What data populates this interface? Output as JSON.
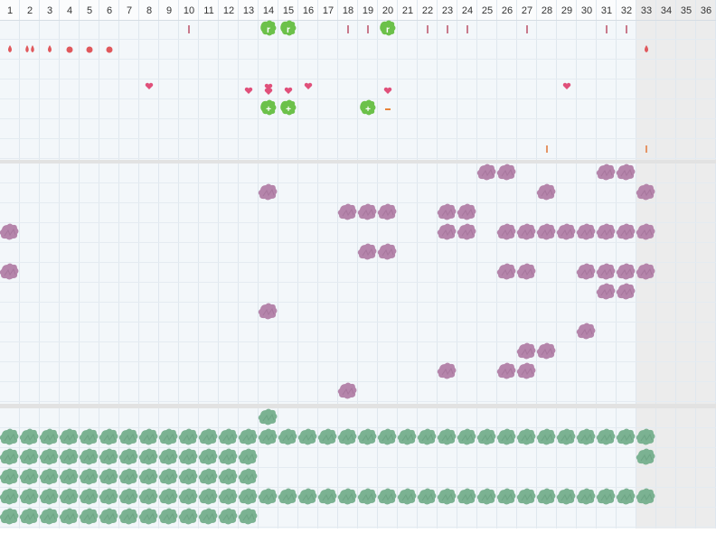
{
  "columns": [
    1,
    2,
    3,
    4,
    5,
    6,
    7,
    8,
    9,
    10,
    11,
    12,
    13,
    14,
    15,
    16,
    17,
    18,
    19,
    20,
    21,
    22,
    23,
    24,
    25,
    26,
    27,
    28,
    29,
    30,
    31,
    32,
    33,
    34,
    35,
    36
  ],
  "sections": [
    {
      "rows": [
        [
          {
            "icon": "tick",
            "days": [
              10,
              18,
              19,
              22,
              23,
              24,
              27,
              31,
              32
            ]
          },
          {
            "icon": "badge",
            "glyph": "r",
            "days": [
              14,
              15,
              20
            ]
          }
        ],
        [
          {
            "icon": "drop",
            "days": [
              1,
              3,
              33
            ]
          },
          {
            "icon": "drop-pair",
            "days": [
              2
            ]
          },
          {
            "icon": "dot",
            "days": [
              4,
              5,
              6
            ]
          }
        ],
        [],
        [
          {
            "icon": "heart",
            "days": [
              8,
              16,
              29
            ]
          },
          {
            "icon": "heart-low",
            "days": [
              13,
              15,
              20
            ]
          },
          {
            "icon": "heart-pair",
            "days": [
              14
            ]
          }
        ],
        [
          {
            "icon": "badge",
            "glyph": "+",
            "days": [
              14,
              15,
              19
            ]
          },
          {
            "icon": "dash",
            "days": [
              20
            ]
          }
        ],
        [],
        [
          {
            "icon": "orange-tick",
            "days": [
              28,
              33
            ]
          }
        ]
      ]
    },
    {
      "rows": [
        [
          {
            "icon": "pink-blob",
            "days": [
              25,
              26,
              31,
              32
            ]
          }
        ],
        [
          {
            "icon": "pink-blob",
            "days": [
              14,
              28,
              33
            ]
          }
        ],
        [
          {
            "icon": "pink-blob",
            "days": [
              18,
              19,
              20,
              23,
              24
            ]
          }
        ],
        [
          {
            "icon": "pink-blob",
            "days": [
              1,
              23,
              24,
              26,
              27,
              28,
              29,
              30,
              31,
              32,
              33
            ]
          }
        ],
        [
          {
            "icon": "pink-blob",
            "days": [
              19,
              20
            ]
          }
        ],
        [
          {
            "icon": "pink-blob",
            "days": [
              1,
              26,
              27,
              30,
              31,
              32,
              33
            ]
          }
        ],
        [
          {
            "icon": "pink-blob",
            "days": [
              31,
              32
            ]
          }
        ],
        [
          {
            "icon": "pink-blob",
            "days": [
              14
            ]
          }
        ],
        [
          {
            "icon": "pink-blob",
            "days": [
              30
            ]
          }
        ],
        [
          {
            "icon": "pink-blob",
            "days": [
              27,
              28
            ]
          }
        ],
        [
          {
            "icon": "pink-blob",
            "days": [
              23,
              26,
              27
            ]
          }
        ],
        [
          {
            "icon": "pink-blob",
            "days": [
              18
            ]
          }
        ]
      ]
    },
    {
      "rows": [
        [
          {
            "icon": "green-blob",
            "days": [
              14
            ]
          }
        ],
        [
          {
            "icon": "green-blob",
            "days": [
              1,
              2,
              3,
              4,
              5,
              6,
              7,
              8,
              9,
              10,
              11,
              12,
              13,
              14,
              15,
              16,
              17,
              18,
              19,
              20,
              21,
              22,
              23,
              24,
              25,
              26,
              27,
              28,
              29,
              30,
              31,
              32,
              33
            ]
          }
        ],
        [
          {
            "icon": "green-blob",
            "days": [
              1,
              2,
              3,
              4,
              5,
              6,
              7,
              8,
              9,
              10,
              11,
              12,
              13,
              33
            ]
          }
        ],
        [
          {
            "icon": "green-blob",
            "days": [
              1,
              2,
              3,
              4,
              5,
              6,
              7,
              8,
              9,
              10,
              11,
              12,
              13
            ]
          }
        ],
        [
          {
            "icon": "green-blob",
            "days": [
              1,
              2,
              3,
              4,
              5,
              6,
              7,
              8,
              9,
              10,
              11,
              12,
              13,
              14,
              15,
              16,
              17,
              18,
              19,
              20,
              21,
              22,
              23,
              24,
              25,
              26,
              27,
              28,
              29,
              30,
              31,
              32,
              33
            ]
          }
        ],
        [
          {
            "icon": "green-blob",
            "days": [
              1,
              2,
              3,
              4,
              5,
              6,
              7,
              8,
              9,
              10,
              11,
              12,
              13
            ]
          }
        ]
      ]
    }
  ]
}
